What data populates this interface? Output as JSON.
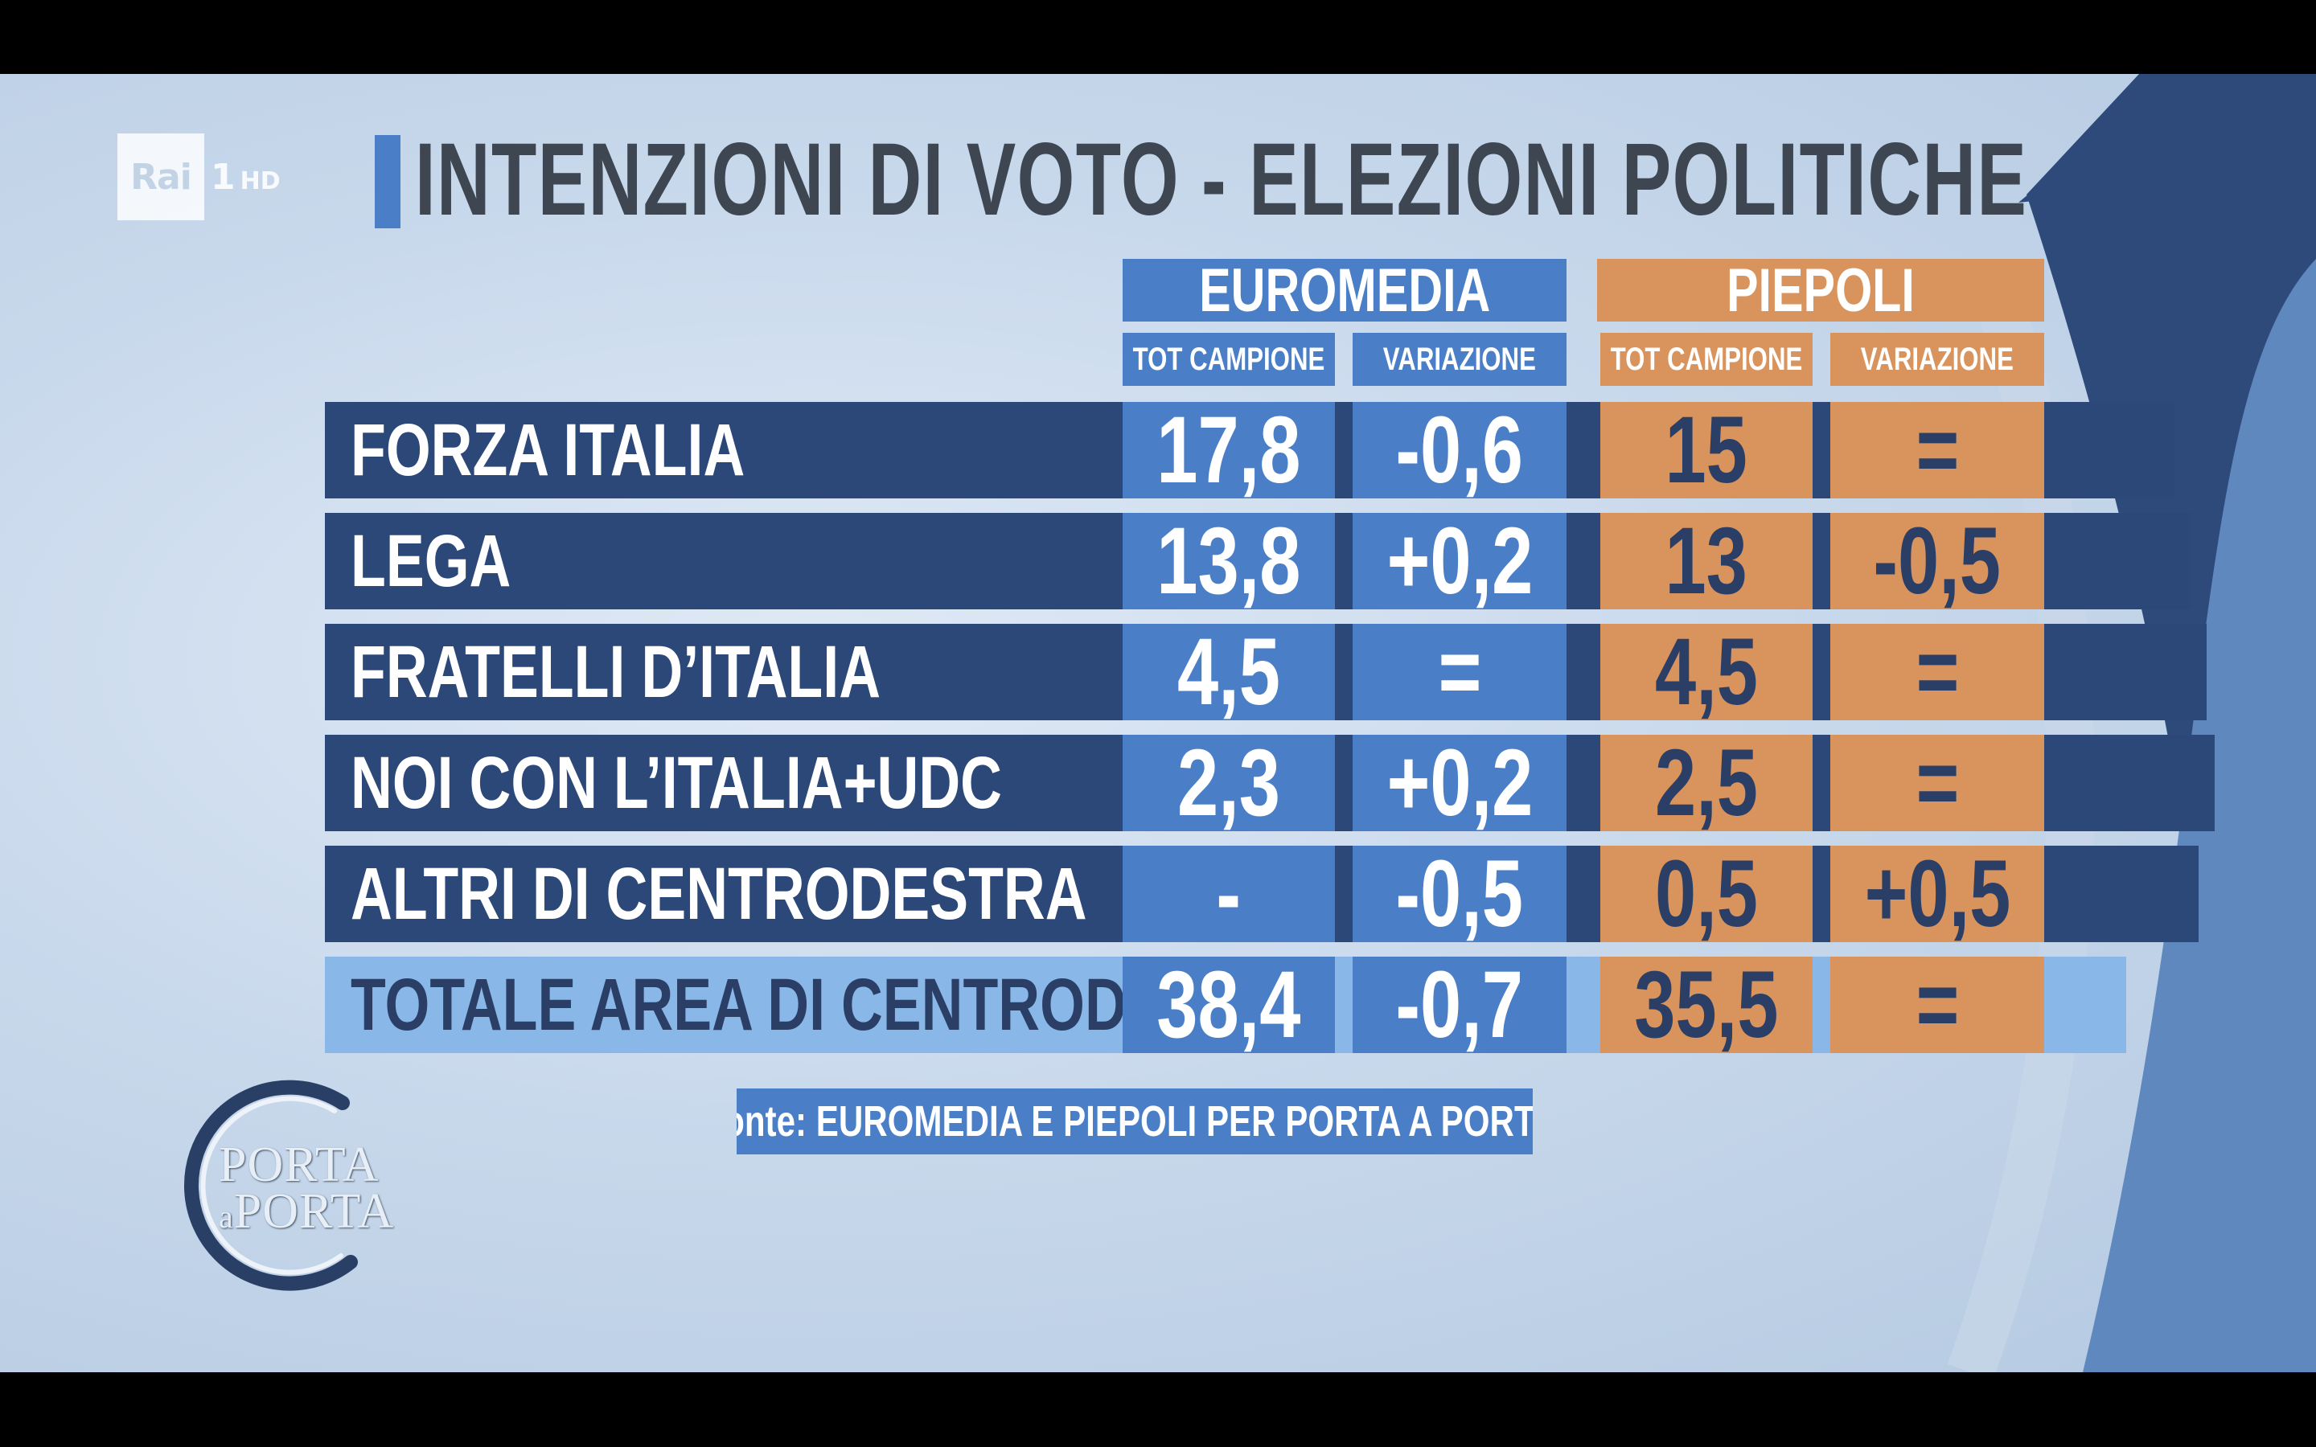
{
  "broadcast": {
    "channel_logo": "Rai",
    "channel_number": "1",
    "channel_quality": "HD"
  },
  "title": "INTENZIONI DI VOTO - ELEZIONI POLITICHE",
  "pollsters": [
    {
      "name": "EUROMEDIA",
      "color": "#4a7fc8",
      "columns": [
        "TOT CAMPIONE",
        "VARIAZIONE"
      ]
    },
    {
      "name": "PIEPOLI",
      "color": "#d9935c",
      "columns": [
        "TOT CAMPIONE",
        "VARIAZIONE"
      ]
    }
  ],
  "rows": [
    {
      "party": "FORZA ITALIA",
      "euromedia_tot": "17,8",
      "euromedia_var": "-0,6",
      "piepoli_tot": "15",
      "piepoli_var": "="
    },
    {
      "party": "LEGA",
      "euromedia_tot": "13,8",
      "euromedia_var": "+0,2",
      "piepoli_tot": "13",
      "piepoli_var": "-0,5"
    },
    {
      "party": "FRATELLI D’ITALIA",
      "euromedia_tot": "4,5",
      "euromedia_var": "=",
      "piepoli_tot": "4,5",
      "piepoli_var": "="
    },
    {
      "party": "NOI CON L’ITALIA+UDC",
      "euromedia_tot": "2,3",
      "euromedia_var": "+0,2",
      "piepoli_tot": "2,5",
      "piepoli_var": "="
    },
    {
      "party": "ALTRI DI CENTRODESTRA",
      "euromedia_tot": "-",
      "euromedia_var": "-0,5",
      "piepoli_tot": "0,5",
      "piepoli_var": "+0,5"
    }
  ],
  "total": {
    "party": "TOTALE AREA DI CENTRODESTRA",
    "euromedia_tot": "38,4",
    "euromedia_var": "-0,7",
    "piepoli_tot": "35,5",
    "piepoli_var": "="
  },
  "footnote": "fonte: EUROMEDIA E PIEPOLI PER PORTA A PORTA",
  "show_logo": {
    "line1": "PORTA",
    "line2_a": "a",
    "line2_b": "PORTA"
  },
  "colors": {
    "row_band": "#2c4878",
    "total_band": "#89b8e8",
    "euromedia": "#4a7fc8",
    "piepoli": "#d9935c",
    "title_text": "#3e4652"
  }
}
